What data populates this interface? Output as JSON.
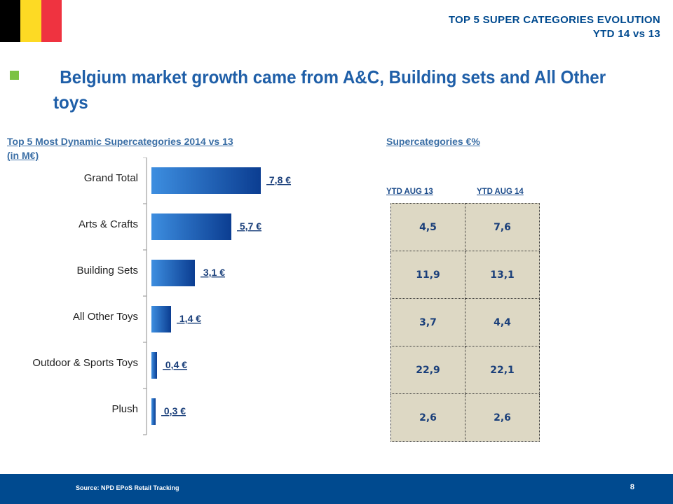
{
  "colors": {
    "flag": [
      "#000000",
      "#fdda24",
      "#ef3340"
    ],
    "header": "#004a8f",
    "bullet": "#7cc242",
    "headline": "#1f5fa8",
    "bar_light": "#3d8ee0",
    "bar_dark": "#0b3d91",
    "table_bg": "#ddd8c4",
    "footer": "#004a8f"
  },
  "header": {
    "line1": "TOP 5 SUPER CATEGORIES EVOLUTION",
    "line2": "YTD 14 vs 13"
  },
  "headline": "Belgium market growth came from A&C, Building sets and All Other toys",
  "left_section": {
    "title_line1": "Top 5 Most Dynamic Supercategories  2014 vs 13",
    "title_line2": "(in M€)"
  },
  "right_section": {
    "title": "Supercategories €%",
    "col1": "YTD AUG 13",
    "col2": "YTD AUG 14",
    "rows": [
      [
        "4,5",
        "7,6"
      ],
      [
        "11,9",
        "13,1"
      ],
      [
        "3,7",
        "4,4"
      ],
      [
        "22,9",
        "22,1"
      ],
      [
        "2,6",
        "2,6"
      ]
    ]
  },
  "chart_data": {
    "type": "bar",
    "orientation": "horizontal",
    "categories": [
      "Grand Total",
      "Arts & Crafts",
      "Building Sets",
      "All Other Toys",
      "Outdoor & Sports Toys",
      "Plush"
    ],
    "values": [
      7.8,
      5.7,
      3.1,
      1.4,
      0.4,
      0.3
    ],
    "data_labels": [
      "7,8 €",
      "5,7 €",
      "3,1 €",
      "1,4 €",
      "0,4 €",
      "0,3 €"
    ],
    "title": "Top 5 Most Dynamic Supercategories  2014 vs 13 (in M€)",
    "xlim": [
      0,
      8.0
    ],
    "grid": false,
    "legend": "none"
  },
  "footer": {
    "source": "Source: NPD EPoS Retail Tracking",
    "page": "8"
  }
}
